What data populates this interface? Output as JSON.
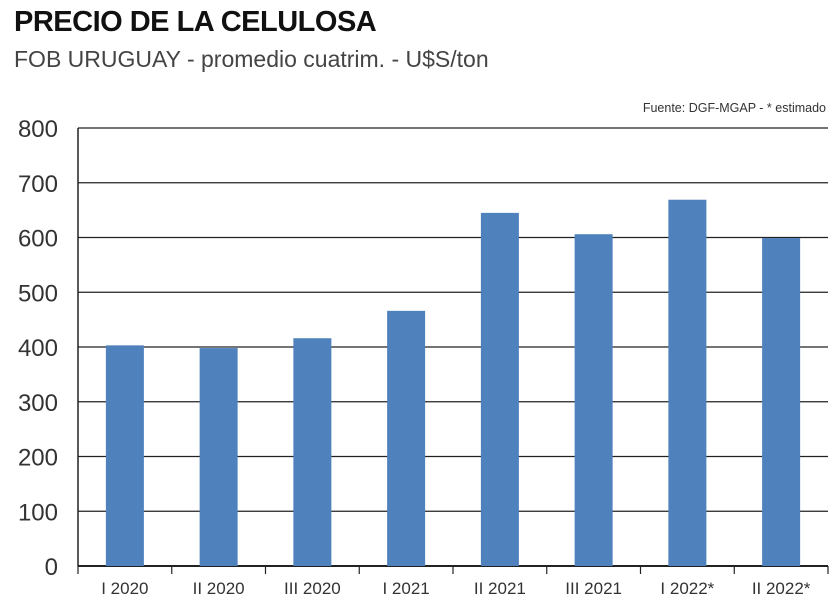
{
  "header": {
    "title": "PRECIO DE LA CELULOSA",
    "subtitle": "FOB URUGUAY - promedio cuatrim. - U$S/ton",
    "source": "Fuente: DGF-MGAP - * estimado"
  },
  "chart_data": {
    "type": "bar",
    "title": "PRECIO DE LA CELULOSA",
    "subtitle": "FOB URUGUAY - promedio cuatrim. - U$S/ton",
    "categories": [
      "I 2020",
      "II 2020",
      "III 2020",
      "I 2021",
      "II 2021",
      "III 2021",
      "I 2022*",
      "II 2022*"
    ],
    "values": [
      403,
      398,
      416,
      466,
      645,
      606,
      669,
      599
    ],
    "ylim": [
      0,
      800
    ],
    "yticks": [
      0,
      100,
      200,
      300,
      400,
      500,
      600,
      700,
      800
    ],
    "grid": true,
    "bar_color": "#4f81bd",
    "grid_color": "#222222"
  }
}
